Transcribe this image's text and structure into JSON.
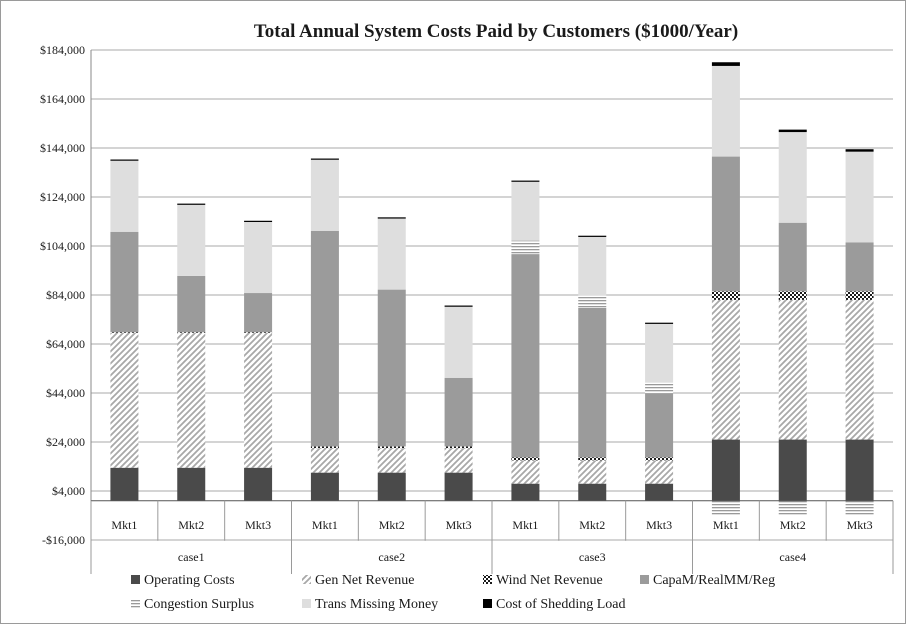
{
  "chart_data": {
    "type": "bar",
    "stacked": true,
    "title": "Total Annual System Costs Paid by Customers ($1000/Year)",
    "ylim": [
      -16000,
      184000
    ],
    "y_ticks": [
      -16000,
      4000,
      24000,
      44000,
      64000,
      84000,
      104000,
      124000,
      144000,
      164000,
      184000
    ],
    "y_tick_labels": [
      "-$16,000",
      "$4,000",
      "$24,000",
      "$44,000",
      "$64,000",
      "$84,000",
      "$104,000",
      "$124,000",
      "$144,000",
      "$164,000",
      "$184,000"
    ],
    "grid": true,
    "legend_position": "bottom",
    "categories": [
      "Mkt1",
      "Mkt2",
      "Mkt3",
      "Mkt1",
      "Mkt2",
      "Mkt3",
      "Mkt1",
      "Mkt2",
      "Mkt3",
      "Mkt1",
      "Mkt2",
      "Mkt3"
    ],
    "groups": [
      {
        "label": "case1",
        "size": 3
      },
      {
        "label": "case2",
        "size": 3
      },
      {
        "label": "case3",
        "size": 3
      },
      {
        "label": "case4",
        "size": 3
      }
    ],
    "series": [
      {
        "name": "Operating Costs",
        "color": "#4a4a4a",
        "pattern": "solid-dark",
        "values": [
          13500,
          13500,
          13500,
          11500,
          11500,
          11500,
          7000,
          7000,
          7000,
          25000,
          25000,
          25000
        ]
      },
      {
        "name": "Gen Net Revenue",
        "color": "#bdbdbd",
        "pattern": "diagonal-hatch",
        "values": [
          55000,
          55000,
          55000,
          10000,
          10000,
          10000,
          9500,
          9500,
          9500,
          57000,
          57000,
          57000
        ]
      },
      {
        "name": "Wind Net Revenue",
        "color": "#222222",
        "pattern": "checker",
        "values": [
          300,
          300,
          300,
          700,
          700,
          700,
          1200,
          1200,
          1200,
          3500,
          3500,
          3500
        ]
      },
      {
        "name": "CapaM/RealMM/Reg",
        "color": "#9b9b9b",
        "pattern": "solid-mid",
        "values": [
          41000,
          23000,
          16000,
          88000,
          64000,
          28000,
          83000,
          61000,
          26000,
          55000,
          28000,
          20000
        ]
      },
      {
        "name": "Congestion Surplus",
        "color": "#cfcfcf",
        "pattern": "horizontal-lines",
        "values": [
          0,
          0,
          0,
          0,
          0,
          0,
          5500,
          5000,
          4500,
          -6000,
          -6000,
          -6000
        ]
      },
      {
        "name": "Trans Missing Money",
        "color": "#dedede",
        "pattern": "solid-light",
        "values": [
          29000,
          29000,
          29000,
          29000,
          29000,
          29000,
          24000,
          24000,
          24000,
          37000,
          37000,
          37000
        ]
      },
      {
        "name": "Cost of Shedding Load",
        "color": "#000000",
        "pattern": "solid-black",
        "values": [
          500,
          500,
          500,
          500,
          500,
          500,
          500,
          500,
          500,
          1500,
          1000,
          1000
        ]
      }
    ]
  }
}
